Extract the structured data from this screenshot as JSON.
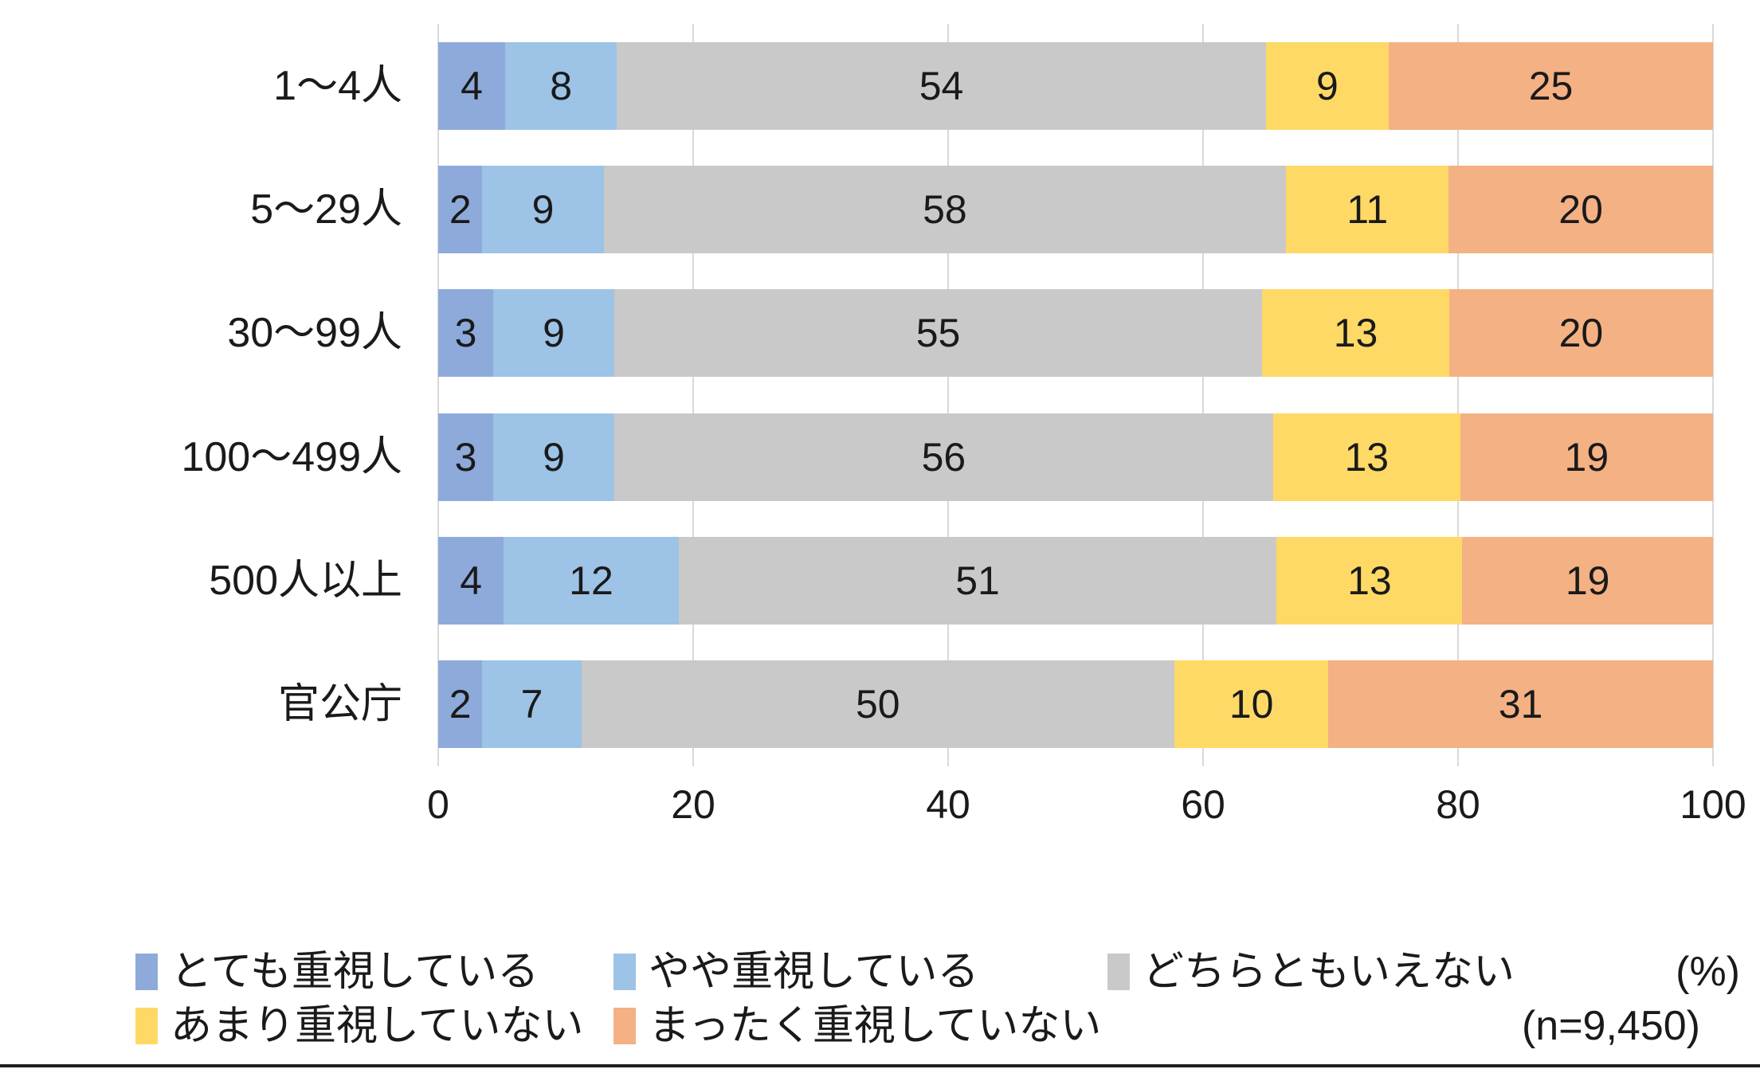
{
  "chart_data": {
    "type": "bar",
    "variant": "horizontal-stacked",
    "title": "",
    "categories": [
      "1〜4人",
      "5〜29人",
      "30〜99人",
      "100〜499人",
      "500人以上",
      "官公庁"
    ],
    "series": [
      {
        "name": "とても重視している",
        "color": "#8eaadb",
        "values": [
          4,
          2,
          3,
          3,
          4,
          2
        ]
      },
      {
        "name": "やや重視している",
        "color": "#9dc3e6",
        "values": [
          8,
          9,
          9,
          9,
          12,
          7
        ]
      },
      {
        "name": "どちらともいえない",
        "color": "#c9c9c9",
        "values": [
          54,
          58,
          55,
          56,
          51,
          50
        ]
      },
      {
        "name": "あまり重視していない",
        "color": "#ffd966",
        "values": [
          9,
          11,
          13,
          13,
          13,
          10
        ]
      },
      {
        "name": "まったく重視していない",
        "color": "#f4b183",
        "values": [
          25,
          20,
          20,
          19,
          19,
          31
        ]
      }
    ],
    "x_ticks": [
      0,
      20,
      40,
      60,
      80,
      100
    ],
    "xlim": [
      0,
      100
    ],
    "grid": true,
    "legend_position": "bottom",
    "unit_label": "(%)",
    "sample_label": "(n=9,450)",
    "gridline_color": "#d9d9d9",
    "text_color": "#1a1a1a"
  }
}
